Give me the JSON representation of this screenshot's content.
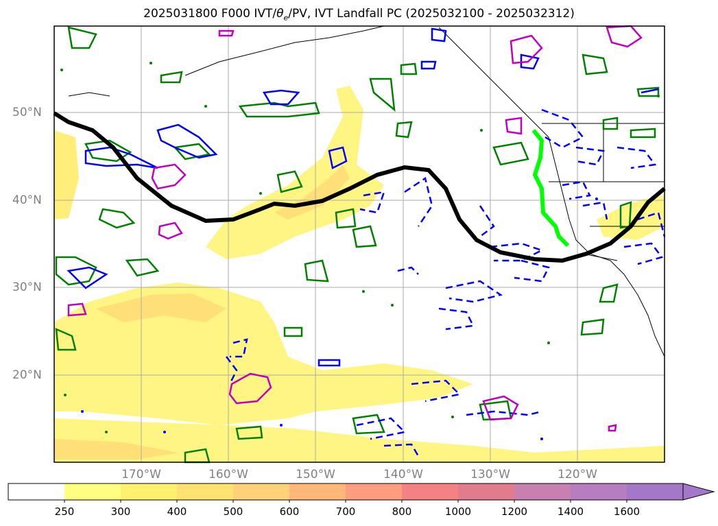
{
  "title": "2025031800 F000 IVT/θ_e/PV, IVT Landfall PC (2025032100 - 2025032312)",
  "title_parts": {
    "prefix": "2025031800 F000 IVT/",
    "theta": "θ",
    "sub": "e",
    "suffix": "/PV, IVT Landfall PC (2025032100 - 2025032312)"
  },
  "lat_labels": [
    "50°N",
    "40°N",
    "30°N",
    "20°N"
  ],
  "lon_labels": [
    "170°W",
    "160°W",
    "150°W",
    "140°W",
    "130°W",
    "120°W"
  ],
  "colorbar": {
    "ticks": [
      "250",
      "300",
      "400",
      "500",
      "600",
      "700",
      "800",
      "1000",
      "1200",
      "1400",
      "1600"
    ],
    "colors": [
      "#ffffff",
      "#ffff80",
      "#fff06e",
      "#ffe270",
      "#ffd27a",
      "#ffb87a",
      "#ff9e7e",
      "#f58282",
      "#e07c8c",
      "#c880b0",
      "#b87cc0",
      "#a478c8"
    ]
  },
  "contour_colors": {
    "ivt_mean": "#000000",
    "landfall": "#00ff00",
    "theta_e": "#008000",
    "pv_negative": "#0000ff",
    "pv_high": "#c000c0"
  }
}
